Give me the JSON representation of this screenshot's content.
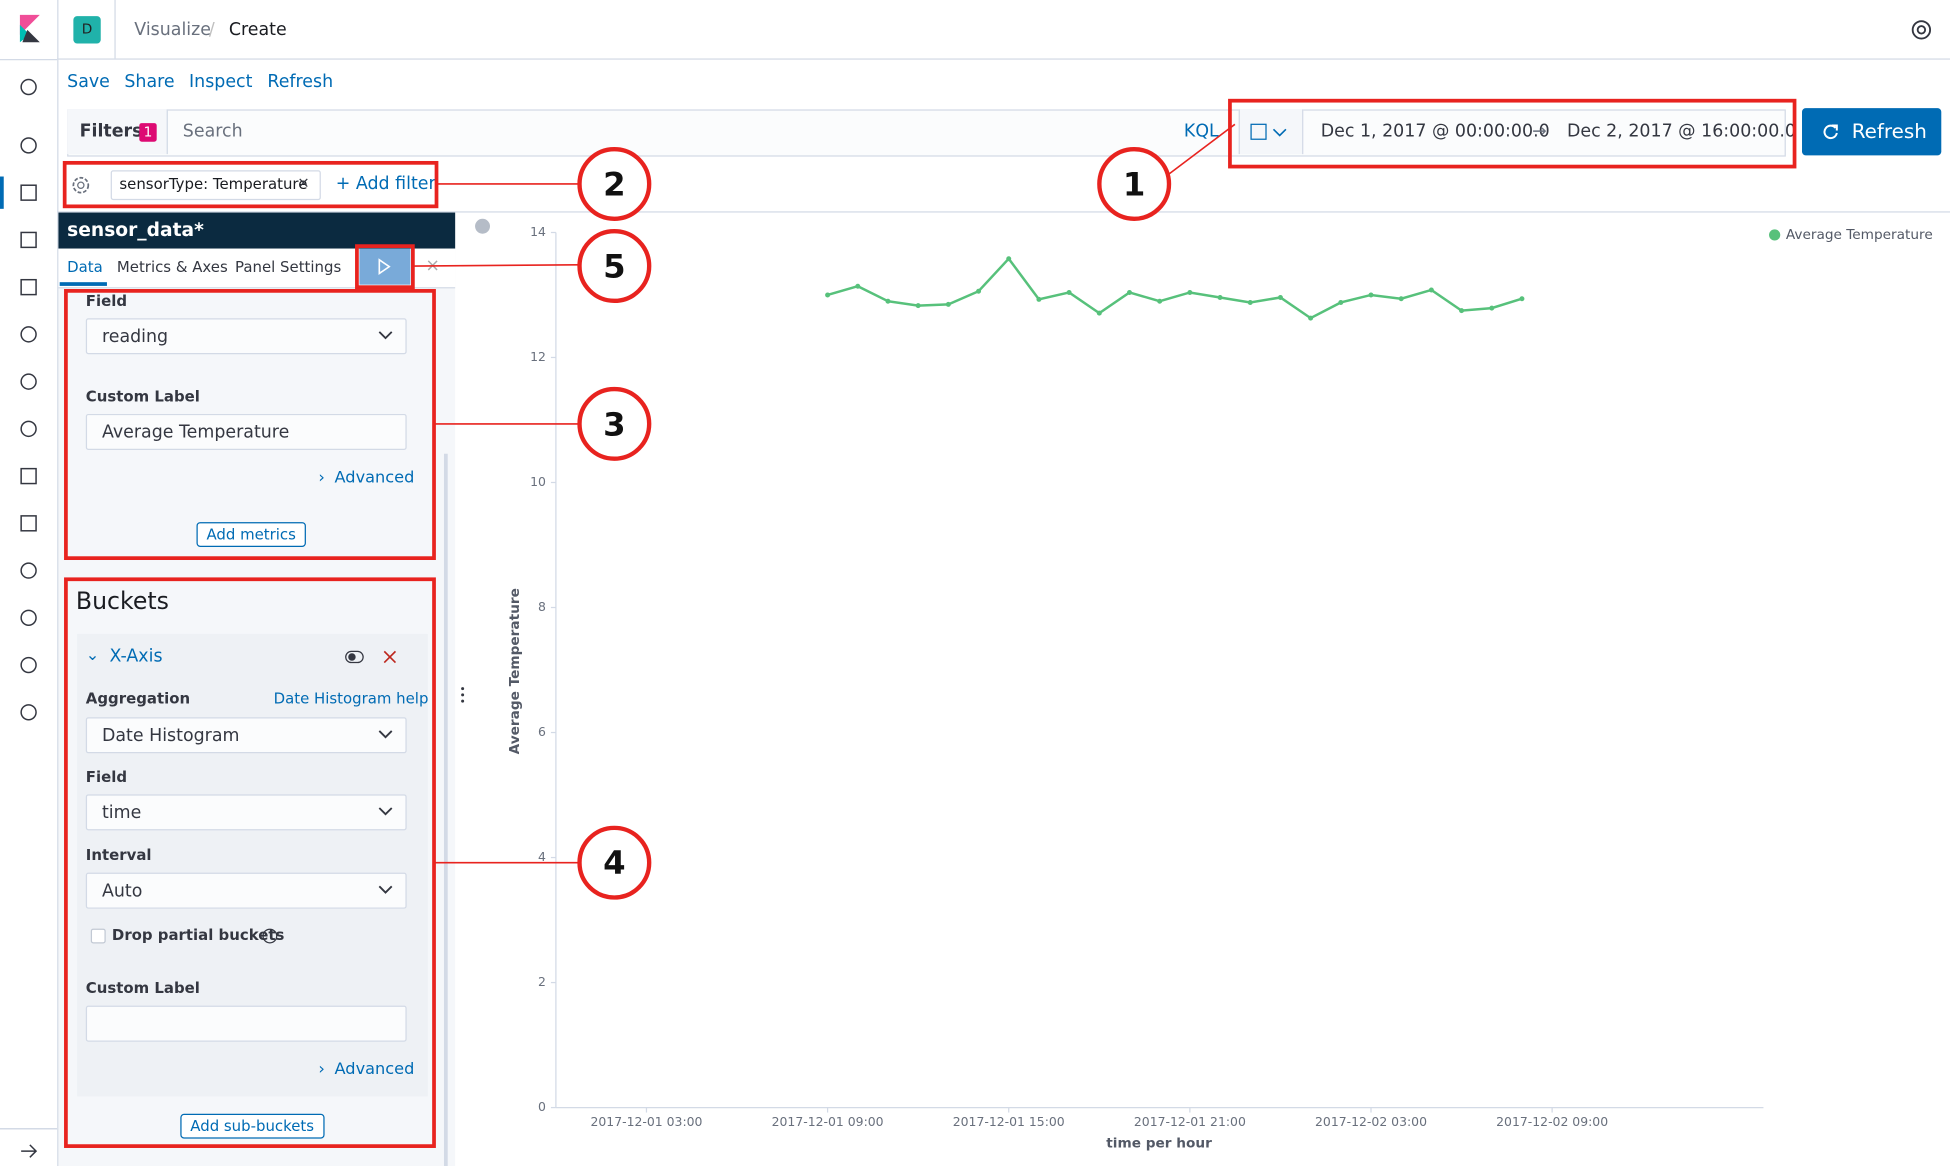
{
  "header": {
    "avatar": "D",
    "breadcrumb": [
      "Visualize",
      "Create"
    ]
  },
  "menu": [
    "Save",
    "Share",
    "Inspect",
    "Refresh"
  ],
  "query_bar": {
    "filters_label": "Filters",
    "filter_count": "1",
    "search_placeholder": "Search",
    "language": "KQL",
    "start": "Dec 1, 2017 @ 00:00:00.0",
    "end": "Dec 2, 2017 @ 16:00:00.0",
    "refresh": "Refresh"
  },
  "filter_bar": {
    "filter": "sensorType: Temperature",
    "add_filter": "+ Add filter"
  },
  "editor": {
    "index": "sensor_data*",
    "tabs": [
      "Data",
      "Metrics & Axes",
      "Panel Settings"
    ],
    "metrics": {
      "field_label": "Field",
      "field": "reading",
      "custom_label_label": "Custom Label",
      "custom_label": "Average Temperature",
      "advanced": "Advanced",
      "add": "Add metrics"
    },
    "buckets": {
      "title": "Buckets",
      "x_axis": "X-Axis",
      "aggregation_label": "Aggregation",
      "help": "Date Histogram help",
      "aggregation": "Date Histogram",
      "field_label": "Field",
      "field": "time",
      "interval_label": "Interval",
      "interval": "Auto",
      "drop_partial": "Drop partial buckets",
      "custom_label_label": "Custom Label",
      "advanced": "Advanced",
      "add": "Add sub-buckets"
    }
  },
  "annotations": [
    "1",
    "2",
    "3",
    "4",
    "5"
  ],
  "chart_data": {
    "type": "line",
    "x_label": "time per hour",
    "y_label": "Average Temperature",
    "legend": "top-right",
    "x": [
      "2017-12-01 09:00",
      "2017-12-01 10:00",
      "2017-12-01 11:00",
      "2017-12-01 12:00",
      "2017-12-01 13:00",
      "2017-12-01 14:00",
      "2017-12-01 15:00",
      "2017-12-01 16:00",
      "2017-12-01 17:00",
      "2017-12-01 18:00",
      "2017-12-01 19:00",
      "2017-12-01 20:00",
      "2017-12-01 21:00",
      "2017-12-01 22:00",
      "2017-12-01 23:00",
      "2017-12-02 00:00",
      "2017-12-02 01:00",
      "2017-12-02 02:00",
      "2017-12-02 03:00",
      "2017-12-02 04:00",
      "2017-12-02 05:00",
      "2017-12-02 06:00",
      "2017-12-02 07:00",
      "2017-12-02 08:00"
    ],
    "series": [
      {
        "name": "Average Temperature",
        "color": "#57c17b",
        "values": [
          13.0,
          13.14,
          12.9,
          12.83,
          12.85,
          13.06,
          13.58,
          12.93,
          13.04,
          12.71,
          13.04,
          12.9,
          13.04,
          12.96,
          12.88,
          12.96,
          12.63,
          12.88,
          13.0,
          12.94,
          13.08,
          12.75,
          12.79,
          12.94
        ]
      }
    ],
    "xlim": [
      "2017-12-01 00:00",
      "2017-12-02 16:00"
    ],
    "xticks": [
      "2017-12-01 03:00",
      "2017-12-01 09:00",
      "2017-12-01 15:00",
      "2017-12-01 21:00",
      "2017-12-02 03:00",
      "2017-12-02 09:00"
    ],
    "ylim": [
      0,
      14
    ],
    "yticks": [
      0,
      2,
      4,
      6,
      8,
      10,
      12,
      14
    ]
  }
}
